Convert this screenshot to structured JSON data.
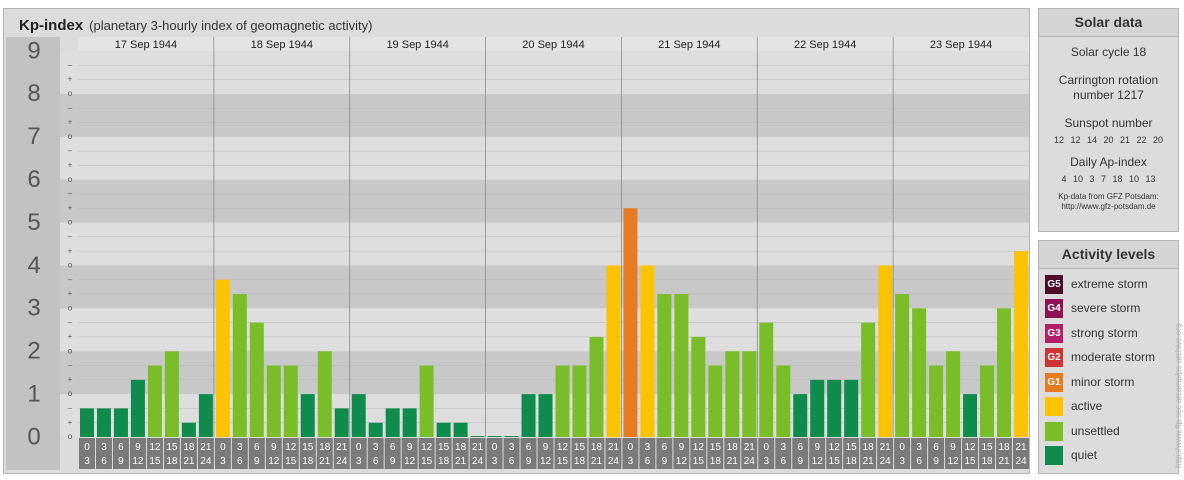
{
  "title": "Kp-index",
  "subtitle": "(planetary 3-hourly index of geomagnetic activity)",
  "chart_data": {
    "type": "bar",
    "ylim": [
      0,
      9
    ],
    "y_ticks": [
      "0",
      "1",
      "2",
      "3",
      "4",
      "5",
      "6",
      "7",
      "8",
      "9"
    ],
    "sub_ticks": [
      "o",
      "+",
      "–"
    ],
    "days": [
      "17 Sep 1944",
      "18 Sep 1944",
      "19 Sep 1944",
      "20 Sep 1944",
      "21 Sep 1944",
      "22 Sep 1944",
      "23 Sep 1944"
    ],
    "interval_start": [
      "0",
      "3",
      "6",
      "9",
      "12",
      "15",
      "18",
      "21"
    ],
    "interval_end": [
      "3",
      "6",
      "9",
      "12",
      "15",
      "18",
      "21",
      "24"
    ],
    "values": [
      0.667,
      0.667,
      0.667,
      1.333,
      1.667,
      2.0,
      0.333,
      1.0,
      3.667,
      3.333,
      2.667,
      1.667,
      1.667,
      1.0,
      2.0,
      0.667,
      1.0,
      0.333,
      0.667,
      0.667,
      1.667,
      0.333,
      0.333,
      0.0,
      0.0,
      0.0,
      1.0,
      1.0,
      1.667,
      1.667,
      2.333,
      4.0,
      5.333,
      4.0,
      3.333,
      3.333,
      2.333,
      1.667,
      2.0,
      2.0,
      2.667,
      1.667,
      1.0,
      1.333,
      1.333,
      1.333,
      2.667,
      4.0,
      3.333,
      3.0,
      1.667,
      2.0,
      1.0,
      1.667,
      3.0,
      4.333
    ]
  },
  "solar_data": {
    "heading": "Solar data",
    "cycle": "Solar cycle 18",
    "carrington_1": "Carrington rotation",
    "carrington_2": "number 1217",
    "sunspot_label": "Sunspot number",
    "sunspot_values": "12 12 14 20 21 22 20",
    "ap_label": "Daily Ap-index",
    "ap_values": "4 10 3 7 18 10 13",
    "source_1": "Kp-data from GFZ Potsdam:",
    "source_2": "http://www.gfz-potsdam.de"
  },
  "activity_levels": {
    "heading": "Activity levels",
    "items": [
      {
        "code": "G5",
        "label": "extreme storm",
        "color": "#4d0d28"
      },
      {
        "code": "G4",
        "label": "severe storm",
        "color": "#8e1253"
      },
      {
        "code": "G3",
        "label": "strong storm",
        "color": "#b21f67"
      },
      {
        "code": "G2",
        "label": "moderate storm",
        "color": "#cc3333"
      },
      {
        "code": "G1",
        "label": "minor storm",
        "color": "#e67b22"
      },
      {
        "code": "",
        "label": "active",
        "color": "#fbc300"
      },
      {
        "code": "",
        "label": "unsettled",
        "color": "#79be28"
      },
      {
        "code": "",
        "label": "quiet",
        "color": "#0f8b4b"
      }
    ]
  },
  "credit": "http://www.ftp.sec.arcamp/ps-archive.org"
}
